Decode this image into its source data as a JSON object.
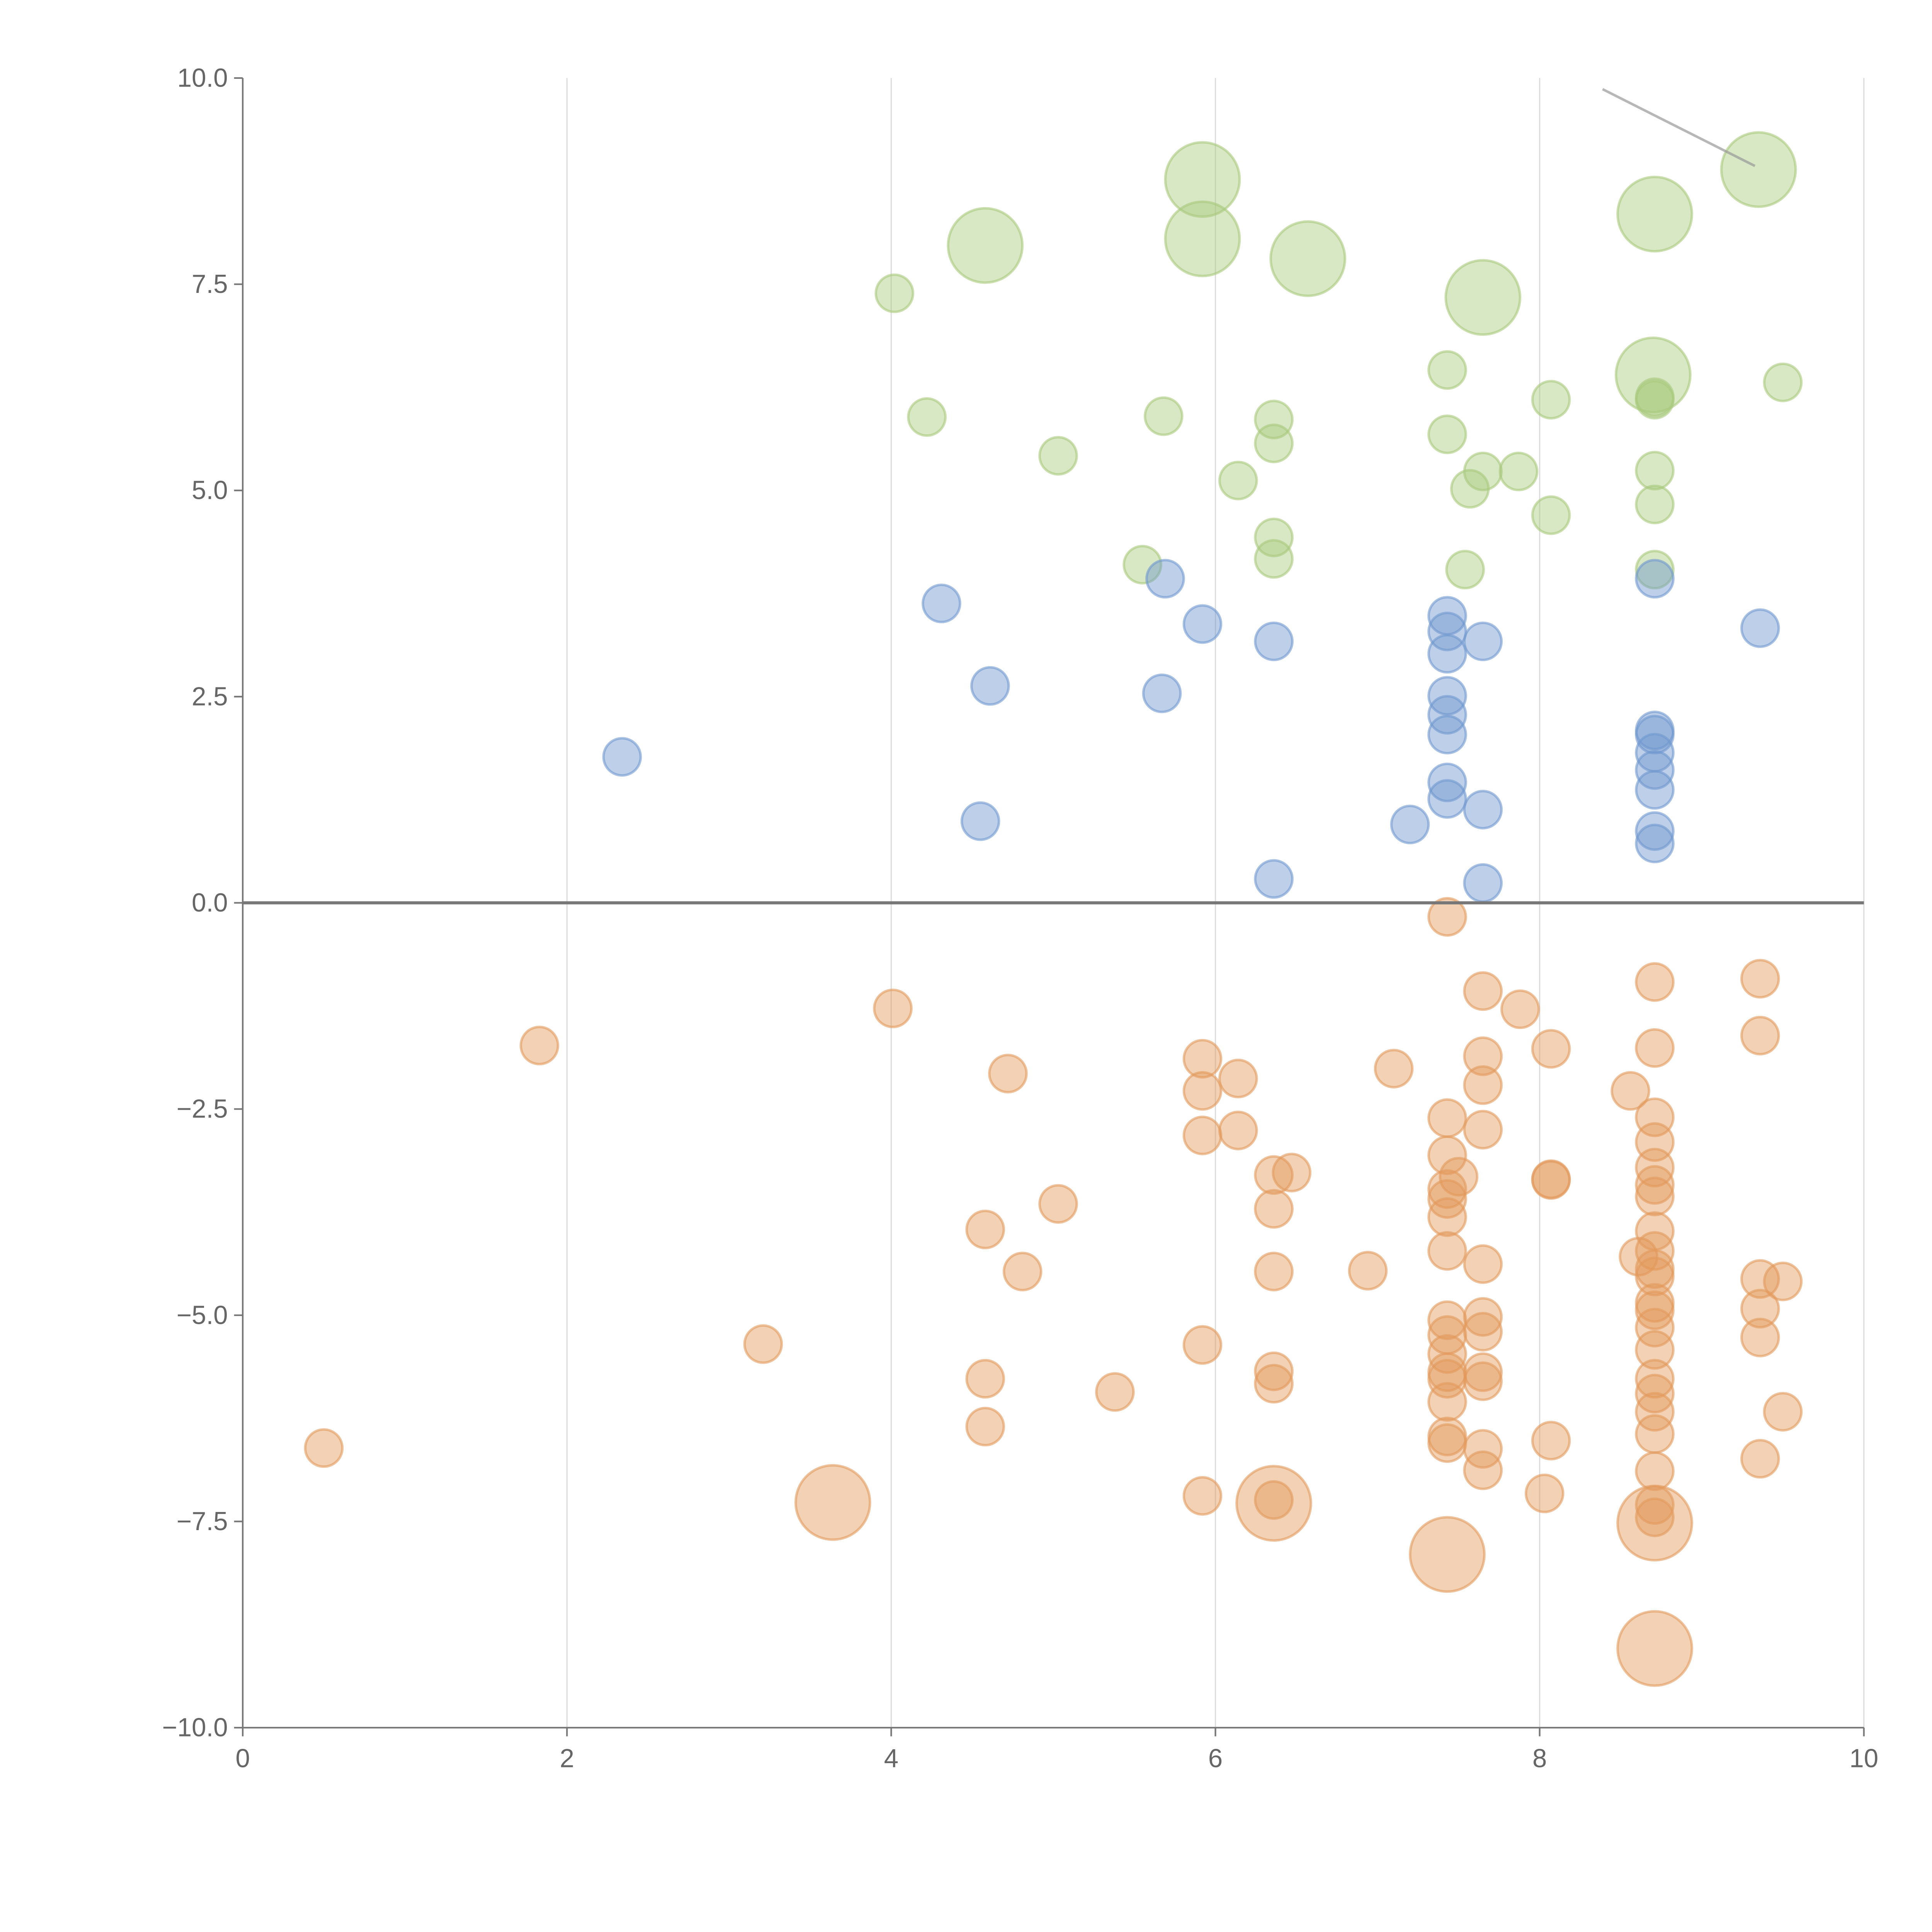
{
  "chart_data": {
    "type": "scatter",
    "title": "",
    "xlabel": "",
    "ylabel": "",
    "xlim": [
      0,
      10
    ],
    "ylim": [
      -10,
      10
    ],
    "grid": "vertical",
    "xticks": [
      "0",
      "2",
      "4",
      "6",
      "8",
      "10"
    ],
    "xtick_values": [
      0,
      2,
      4,
      6,
      8,
      10
    ],
    "yticks": [
      "10.0",
      "7.5",
      "5.0",
      "2.5",
      "0.0",
      "−2.5",
      "−5.0",
      "−7.5",
      "−10.0"
    ],
    "ytick_values": [
      10,
      7.5,
      5,
      2.5,
      0,
      -2.5,
      -5,
      -7.5,
      -10
    ],
    "colors": {
      "green": "#a8c97d",
      "blue": "#6f97cf",
      "orange": "#e39a5c"
    },
    "series": [
      {
        "name": "green",
        "color": "#a8c97d",
        "points": [
          [
            5.92,
            8.77,
            4
          ],
          [
            4.58,
            7.97,
            4
          ],
          [
            5.92,
            8.05,
            4
          ],
          [
            6.57,
            7.81,
            4
          ],
          [
            7.65,
            7.34,
            4
          ],
          [
            8.71,
            8.35,
            4
          ],
          [
            9.35,
            8.89,
            4
          ],
          [
            8.7,
            6.4,
            4
          ],
          [
            4.02,
            7.39,
            1
          ],
          [
            4.22,
            5.89,
            1
          ],
          [
            5.03,
            5.42,
            1
          ],
          [
            5.68,
            5.9,
            1
          ],
          [
            6.36,
            5.86,
            1
          ],
          [
            6.36,
            5.57,
            1
          ],
          [
            6.14,
            5.12,
            1
          ],
          [
            6.36,
            4.43,
            1
          ],
          [
            6.36,
            4.17,
            1
          ],
          [
            5.55,
            4.1,
            1
          ],
          [
            7.43,
            6.46,
            1
          ],
          [
            7.43,
            5.68,
            1
          ],
          [
            7.65,
            5.23,
            1
          ],
          [
            7.57,
            5.02,
            1
          ],
          [
            7.87,
            5.23,
            1
          ],
          [
            7.54,
            4.04,
            1
          ],
          [
            8.07,
            6.1,
            1
          ],
          [
            8.07,
            4.7,
            1
          ],
          [
            8.71,
            6.13,
            1
          ],
          [
            8.71,
            6.1,
            1
          ],
          [
            8.71,
            5.24,
            1
          ],
          [
            8.71,
            4.83,
            1
          ],
          [
            8.71,
            4.04,
            1
          ],
          [
            9.5,
            6.31,
            1
          ]
        ]
      },
      {
        "name": "blue",
        "color": "#6f97cf",
        "points": [
          [
            2.34,
            1.77,
            1
          ],
          [
            4.31,
            3.63,
            1
          ],
          [
            4.61,
            2.63,
            1
          ],
          [
            4.55,
            0.99,
            1
          ],
          [
            5.69,
            3.93,
            1
          ],
          [
            5.92,
            3.38,
            1
          ],
          [
            5.67,
            2.54,
            1
          ],
          [
            6.36,
            3.17,
            1
          ],
          [
            6.36,
            0.29,
            1
          ],
          [
            7.2,
            0.95,
            1
          ],
          [
            7.43,
            3.48,
            1
          ],
          [
            7.43,
            3.29,
            1
          ],
          [
            7.43,
            3.02,
            1
          ],
          [
            7.43,
            2.51,
            1
          ],
          [
            7.43,
            2.28,
            1
          ],
          [
            7.43,
            2.04,
            1
          ],
          [
            7.43,
            1.46,
            1
          ],
          [
            7.43,
            1.26,
            1
          ],
          [
            7.65,
            3.17,
            1
          ],
          [
            7.65,
            1.13,
            1
          ],
          [
            7.65,
            0.24,
            1
          ],
          [
            8.71,
            3.93,
            1
          ],
          [
            8.71,
            2.09,
            1
          ],
          [
            8.71,
            2.04,
            1
          ],
          [
            8.71,
            1.82,
            1
          ],
          [
            8.71,
            1.61,
            1
          ],
          [
            8.71,
            1.37,
            1
          ],
          [
            8.71,
            0.87,
            1
          ],
          [
            8.71,
            0.72,
            1
          ],
          [
            9.36,
            3.33,
            1
          ]
        ]
      },
      {
        "name": "orange",
        "color": "#e39a5c",
        "points": [
          [
            3.64,
            -7.27,
            4
          ],
          [
            6.36,
            -7.28,
            4
          ],
          [
            7.43,
            -7.9,
            4
          ],
          [
            8.71,
            -7.52,
            4
          ],
          [
            8.71,
            -9.04,
            4
          ],
          [
            0.5,
            -6.61,
            1
          ],
          [
            1.83,
            -1.73,
            1
          ],
          [
            3.21,
            -5.35,
            1
          ],
          [
            4.01,
            -1.28,
            1
          ],
          [
            4.72,
            -2.07,
            1
          ],
          [
            4.58,
            -3.96,
            1
          ],
          [
            4.81,
            -4.47,
            1
          ],
          [
            5.03,
            -3.65,
            1
          ],
          [
            4.58,
            -5.77,
            1
          ],
          [
            4.58,
            -6.35,
            1
          ],
          [
            5.38,
            -5.93,
            1
          ],
          [
            5.92,
            -1.89,
            1
          ],
          [
            5.92,
            -2.28,
            1
          ],
          [
            6.14,
            -2.13,
            1
          ],
          [
            6.14,
            -2.76,
            1
          ],
          [
            5.92,
            -2.82,
            1
          ],
          [
            6.36,
            -3.3,
            1
          ],
          [
            6.47,
            -3.27,
            1
          ],
          [
            6.36,
            -3.71,
            1
          ],
          [
            6.36,
            -4.47,
            1
          ],
          [
            5.92,
            -5.36,
            1
          ],
          [
            6.36,
            -5.68,
            1
          ],
          [
            6.36,
            -5.83,
            1
          ],
          [
            5.92,
            -7.19,
            1
          ],
          [
            6.36,
            -7.24,
            1
          ],
          [
            6.94,
            -4.46,
            1
          ],
          [
            7.1,
            -2.01,
            1
          ],
          [
            7.43,
            -0.17,
            1
          ],
          [
            7.43,
            -2.61,
            1
          ],
          [
            7.43,
            -3.06,
            1
          ],
          [
            7.5,
            -3.32,
            1
          ],
          [
            7.43,
            -3.47,
            1
          ],
          [
            7.43,
            -3.59,
            1
          ],
          [
            7.43,
            -3.81,
            1
          ],
          [
            7.43,
            -4.22,
            1
          ],
          [
            7.43,
            -5.06,
            1
          ],
          [
            7.43,
            -5.24,
            1
          ],
          [
            7.43,
            -5.47,
            1
          ],
          [
            7.43,
            -5.69,
            1
          ],
          [
            7.43,
            -5.77,
            1
          ],
          [
            7.43,
            -6.05,
            1
          ],
          [
            7.43,
            -6.47,
            1
          ],
          [
            7.43,
            -6.55,
            1
          ],
          [
            7.65,
            -1.07,
            1
          ],
          [
            7.65,
            -1.86,
            1
          ],
          [
            7.65,
            -2.21,
            1
          ],
          [
            7.65,
            -2.75,
            1
          ],
          [
            7.65,
            -4.38,
            1
          ],
          [
            7.65,
            -5.02,
            1
          ],
          [
            7.65,
            -5.2,
            1
          ],
          [
            7.65,
            -5.69,
            1
          ],
          [
            7.65,
            -5.8,
            1
          ],
          [
            7.65,
            -6.62,
            1
          ],
          [
            7.65,
            -6.88,
            1
          ],
          [
            7.88,
            -1.29,
            1
          ],
          [
            8.07,
            -1.77,
            1
          ],
          [
            8.07,
            -3.35,
            1
          ],
          [
            8.07,
            -3.36,
            1
          ],
          [
            8.07,
            -6.52,
            1
          ],
          [
            8.03,
            -7.16,
            1
          ],
          [
            8.56,
            -2.28,
            1
          ],
          [
            8.61,
            -4.29,
            1
          ],
          [
            8.71,
            -0.96,
            1
          ],
          [
            8.71,
            -1.76,
            1
          ],
          [
            8.71,
            -2.6,
            1
          ],
          [
            8.71,
            -2.9,
            1
          ],
          [
            8.71,
            -3.21,
            1
          ],
          [
            8.71,
            -3.42,
            1
          ],
          [
            8.71,
            -3.56,
            1
          ],
          [
            8.71,
            -3.98,
            1
          ],
          [
            8.71,
            -4.22,
            1
          ],
          [
            8.71,
            -4.44,
            1
          ],
          [
            8.71,
            -4.53,
            1
          ],
          [
            8.71,
            -4.85,
            1
          ],
          [
            8.71,
            -4.94,
            1
          ],
          [
            8.71,
            -5.15,
            1
          ],
          [
            8.71,
            -5.42,
            1
          ],
          [
            8.71,
            -5.77,
            1
          ],
          [
            8.71,
            -5.95,
            1
          ],
          [
            8.71,
            -6.17,
            1
          ],
          [
            8.71,
            -6.44,
            1
          ],
          [
            8.71,
            -6.89,
            1
          ],
          [
            8.71,
            -7.3,
            1
          ],
          [
            8.71,
            -7.45,
            1
          ],
          [
            9.36,
            -0.92,
            1
          ],
          [
            9.36,
            -1.61,
            1
          ],
          [
            9.36,
            -4.56,
            1
          ],
          [
            9.5,
            -4.59,
            1
          ],
          [
            9.36,
            -4.92,
            1
          ],
          [
            9.36,
            -5.27,
            1
          ],
          [
            9.5,
            -6.17,
            1
          ],
          [
            9.36,
            -6.74,
            1
          ]
        ]
      }
    ]
  }
}
